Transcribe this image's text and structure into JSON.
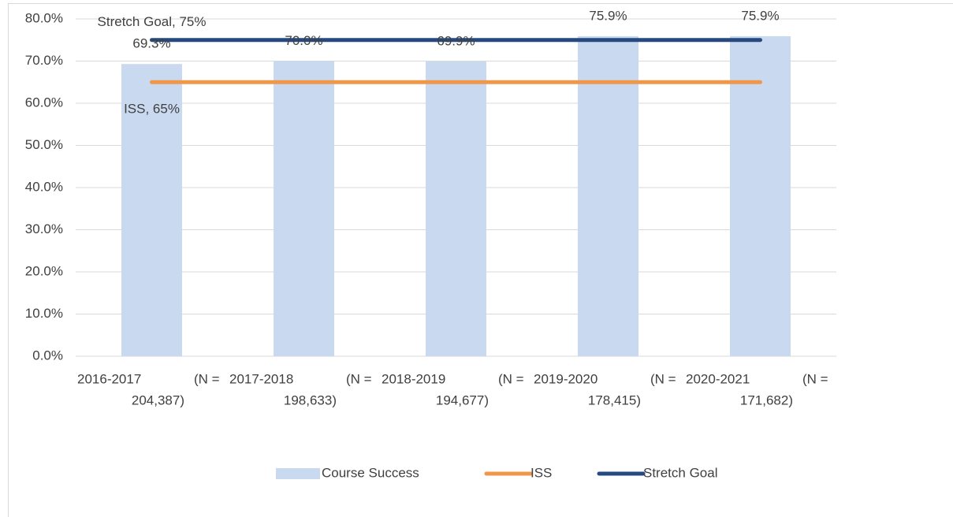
{
  "chart_data": {
    "type": "bar",
    "categories": [
      [
        "2016-2017",
        "(N =",
        "204,387)"
      ],
      [
        "2017-2018",
        "(N =",
        "198,633)"
      ],
      [
        "2018-2019",
        "(N =",
        "194,677)"
      ],
      [
        "2019-2020",
        "(N =",
        "178,415)"
      ],
      [
        "2020-2021",
        "(N =",
        "171,682)"
      ]
    ],
    "series": [
      {
        "name": "Course Success",
        "type": "bar",
        "color": "#c9d9f0",
        "values": [
          69.3,
          70.0,
          69.9,
          75.9,
          75.9
        ],
        "value_labels": [
          "69.3%",
          "70.0%",
          "69.9%",
          "75.9%",
          "75.9%"
        ]
      },
      {
        "name": "ISS",
        "type": "line",
        "color": "#f0984a",
        "values": [
          65,
          65,
          65,
          65,
          65
        ],
        "value_labels": [
          "ISS, 65%",
          null,
          null,
          null,
          null
        ]
      },
      {
        "name": "Stretch Goal",
        "type": "line",
        "color": "#264a7f",
        "values": [
          75,
          75,
          75,
          75,
          75
        ],
        "value_labels": [
          "Stretch Goal, 75%",
          null,
          null,
          null,
          null
        ]
      }
    ],
    "ylim": [
      0,
      80
    ],
    "yticks": [
      {
        "value": 0,
        "label": "0.0%"
      },
      {
        "value": 10,
        "label": "10.0%"
      },
      {
        "value": 20,
        "label": "20.0%"
      },
      {
        "value": 30,
        "label": "30.0%"
      },
      {
        "value": 40,
        "label": "40.0%"
      },
      {
        "value": 50,
        "label": "50.0%"
      },
      {
        "value": 60,
        "label": "60.0%"
      },
      {
        "value": 70,
        "label": "70.0%"
      },
      {
        "value": 80,
        "label": "80.0%"
      }
    ],
    "grid": true,
    "legend": "bottom"
  }
}
